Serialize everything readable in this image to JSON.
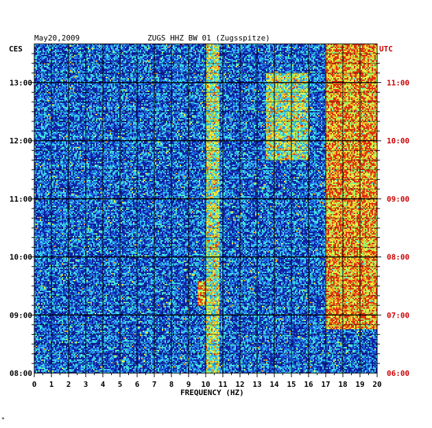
{
  "header": {
    "date": "May20,2009",
    "station": "ZUGS HHZ BW 01 (Zugsspitze)"
  },
  "left_tz": "CES",
  "right_tz": "UTC",
  "footer_mark": "*",
  "colors": {
    "axis": "#000000",
    "utc_label": "#cc0000",
    "background_spectrum": "#1020a0"
  },
  "chart_data": {
    "type": "heatmap",
    "title": "ZUGS HHZ BW 01 (Zugsspitze)",
    "xlabel": "FREQUENCY (HZ)",
    "ylabel_left": "CES",
    "ylabel_right": "UTC",
    "xlim": [
      0,
      20
    ],
    "x_ticks": [
      "0",
      "1",
      "2",
      "3",
      "4",
      "5",
      "6",
      "7",
      "8",
      "9",
      "10",
      "11",
      "12",
      "13",
      "14",
      "15",
      "16",
      "17",
      "18",
      "19",
      "20"
    ],
    "left_ticks": [
      "13:00",
      "12:00",
      "11:00",
      "10:00",
      "09:00",
      "08:00"
    ],
    "right_ticks": [
      "11:00",
      "10:00",
      "09:00",
      "08:00",
      "07:00",
      "06:00"
    ],
    "time_range_ces": [
      "08:00",
      "13:40"
    ],
    "grid": true,
    "features": [
      {
        "freq_range": [
          10.0,
          10.8
        ],
        "time_range_ces": [
          "08:00",
          "13:40"
        ],
        "intensity": "moderate"
      },
      {
        "freq_range": [
          17.0,
          20.0
        ],
        "time_range_ces": [
          "08:45",
          "13:40"
        ],
        "intensity": "high"
      },
      {
        "freq_range": [
          13.5,
          16.0
        ],
        "time_range_ces": [
          "11:40",
          "13:10"
        ],
        "intensity": "moderate"
      },
      {
        "freq_range": [
          9.5,
          10.0
        ],
        "time_range_ces": [
          "09:10",
          "09:35"
        ],
        "intensity": "high"
      }
    ]
  }
}
